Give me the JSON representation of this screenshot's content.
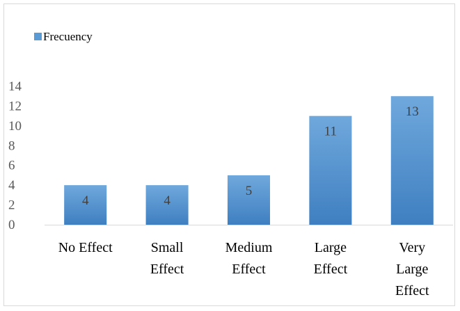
{
  "chart_data": {
    "type": "bar",
    "categories": [
      [
        "No Effect"
      ],
      [
        "Small",
        "Effect"
      ],
      [
        "Medium",
        "Effect"
      ],
      [
        "Large",
        "Effect"
      ],
      [
        "Very",
        "Large",
        "Effect"
      ]
    ],
    "series": [
      {
        "name": "Frecuency",
        "values": [
          4,
          4,
          5,
          11,
          13
        ]
      }
    ],
    "ylim": [
      0,
      14
    ],
    "yticks": [
      0,
      2,
      4,
      6,
      8,
      10,
      12,
      14
    ],
    "grid": false,
    "legend_position": "top-left",
    "data_labels": true,
    "colors": {
      "bar_top": "#6fa8dc",
      "bar_bottom": "#3f7fc1",
      "legend_swatch": "#5b9bd5",
      "axis": "#d9d9d9"
    }
  }
}
